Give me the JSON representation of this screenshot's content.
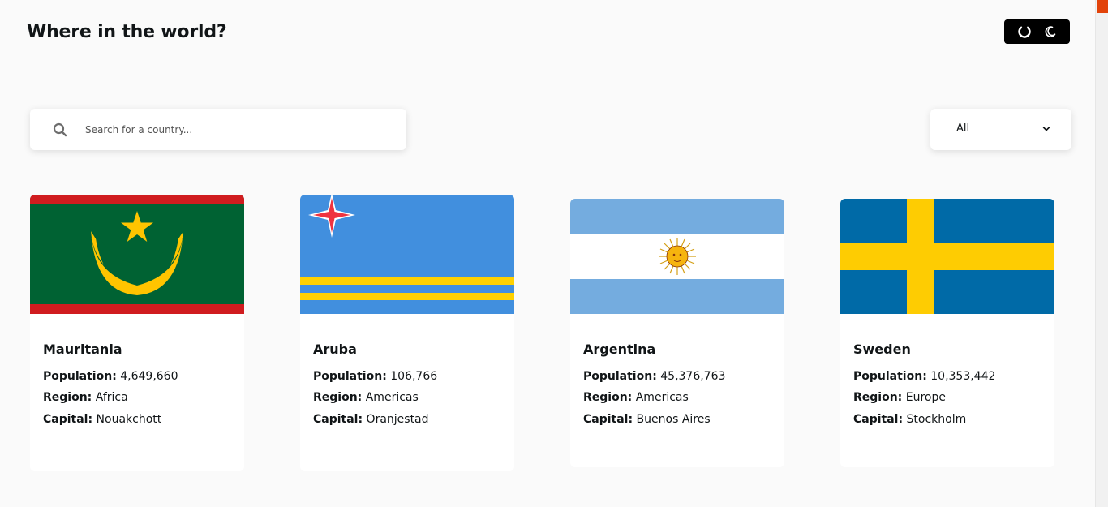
{
  "header": {
    "title": "Where in the world?",
    "theme_toggle_icons": [
      "circle-icon",
      "moon-icon"
    ]
  },
  "search": {
    "placeholder": "Search for a country...",
    "value": ""
  },
  "filter": {
    "selected": "All"
  },
  "labels": {
    "population": "Population:",
    "region": "Region:",
    "capital": "Capital:"
  },
  "countries": [
    {
      "name": "Mauritania",
      "population": "4,649,660",
      "region": "Africa",
      "capital": "Nouakchott"
    },
    {
      "name": "Aruba",
      "population": "106,766",
      "region": "Americas",
      "capital": "Oranjestad"
    },
    {
      "name": "Argentina",
      "population": "45,376,763",
      "region": "Americas",
      "capital": "Buenos Aires"
    },
    {
      "name": "Sweden",
      "population": "10,353,442",
      "region": "Europe",
      "capital": "Stockholm"
    }
  ],
  "colors": {
    "background": "#fafafa",
    "card": "#ffffff",
    "toggle": "#000000",
    "scroll_thumb": "#e2430a"
  }
}
